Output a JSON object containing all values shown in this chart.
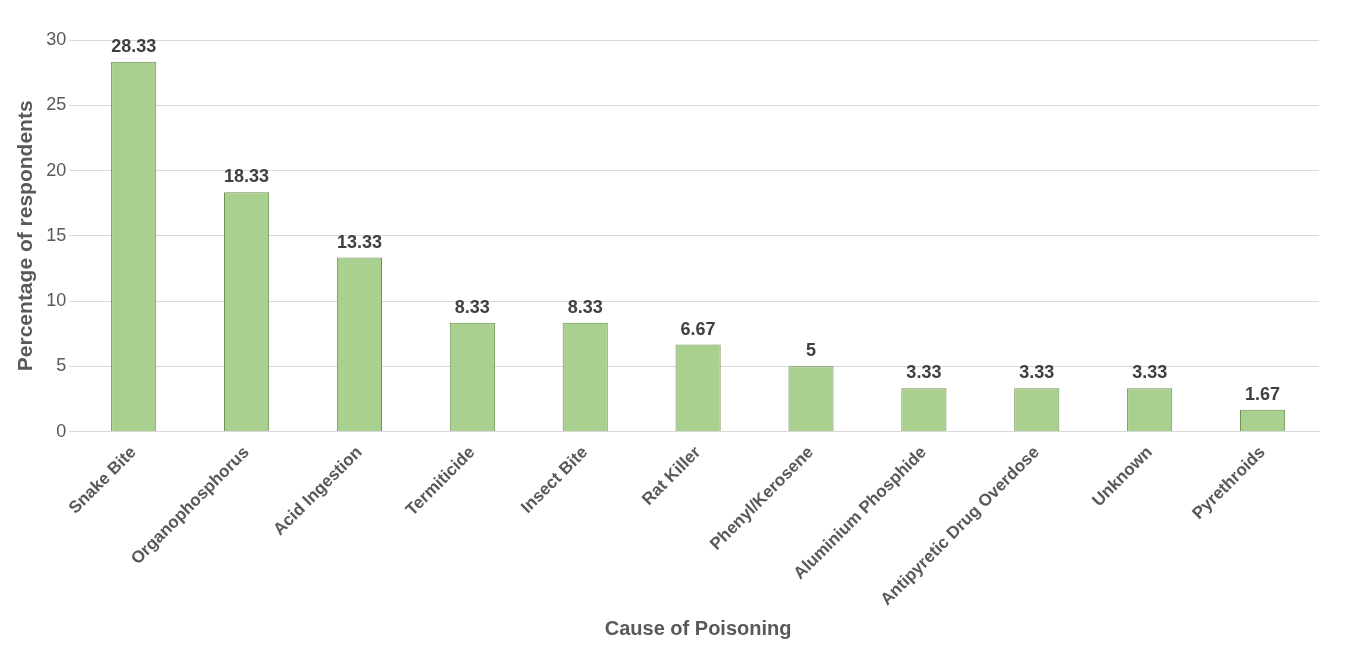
{
  "chart_data": {
    "type": "bar",
    "xlabel": "Cause of Poisoning",
    "ylabel": "Percentage of respondents",
    "categories": [
      "Snake Bite",
      "Organophosphorus",
      "Acid Ingestion",
      "Termiticide",
      "Insect Bite",
      "Rat Killer",
      "Phenyl/Kerosene",
      "Aluminium Phosphide",
      "Antipyretic Drug Overdose",
      "Unknown",
      "Pyrethroids"
    ],
    "values": [
      28.33,
      18.33,
      13.33,
      8.33,
      8.33,
      6.67,
      5,
      3.33,
      3.33,
      3.33,
      1.67
    ],
    "color": "#a9d08e",
    "ylim": [
      0,
      30
    ],
    "yticks": [
      0,
      5,
      10,
      15,
      20,
      25,
      30
    ],
    "grid": "y",
    "data_labels": true,
    "legend": false
  }
}
